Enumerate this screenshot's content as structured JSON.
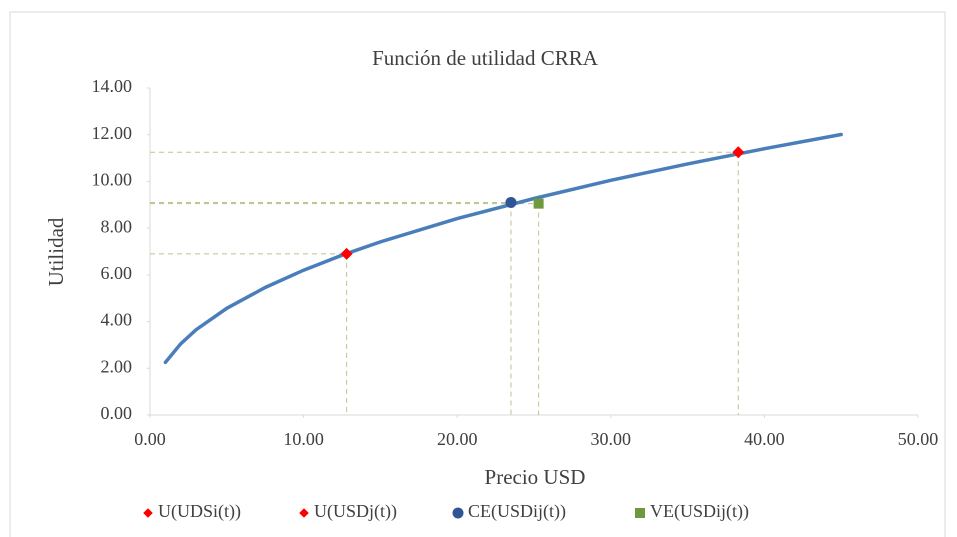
{
  "chart_data": {
    "type": "scatter",
    "title": "Función de utilidad CRRA",
    "xlabel": "Precio USD",
    "ylabel": "Utilidad",
    "xlim": [
      0,
      50
    ],
    "xticks": [
      {
        "value": 0,
        "label": "0.00"
      },
      {
        "value": 10,
        "label": "10.00"
      },
      {
        "value": 20,
        "label": "20.00"
      },
      {
        "value": 30,
        "label": "30.00"
      },
      {
        "value": 40,
        "label": "40.00"
      },
      {
        "value": 50,
        "label": "50.00"
      }
    ],
    "ylim": [
      0,
      14
    ],
    "yticks": [
      {
        "value": 0,
        "label": "0.00"
      },
      {
        "value": 2,
        "label": "2.00"
      },
      {
        "value": 4,
        "label": "4.00"
      },
      {
        "value": 6,
        "label": "6.00"
      },
      {
        "value": 8,
        "label": "8.00"
      },
      {
        "value": 10,
        "label": "10.00"
      },
      {
        "value": 12,
        "label": "12.00"
      },
      {
        "value": 14,
        "label": "14.00"
      }
    ],
    "grid": false,
    "legend": "bottom",
    "curve": {
      "color": "#4a7ebb",
      "x": [
        1,
        2,
        3,
        5,
        7.5,
        10,
        12.5,
        15,
        20,
        25,
        30,
        35,
        40,
        45
      ],
      "values": [
        2.25,
        3.05,
        3.65,
        4.57,
        5.46,
        6.2,
        6.84,
        7.41,
        8.41,
        9.27,
        10.05,
        10.75,
        11.4,
        12.01
      ]
    },
    "series": [
      {
        "name": "U(UDSi(t))",
        "color": "#ff0000",
        "marker": "diamond",
        "x": [
          12.8
        ],
        "values": [
          6.9
        ]
      },
      {
        "name": "U(USDj(t))",
        "color": "#ff0000",
        "marker": "diamond",
        "x": [
          38.3
        ],
        "values": [
          11.25
        ]
      },
      {
        "name": "CE(USDij(t))",
        "color": "#2f5597",
        "marker": "circle",
        "x": [
          23.5
        ],
        "values": [
          9.1
        ]
      },
      {
        "name": "VE(USDij(t))",
        "color": "#70983c",
        "marker": "square",
        "x": [
          25.3
        ],
        "values": [
          9.05
        ]
      }
    ]
  }
}
